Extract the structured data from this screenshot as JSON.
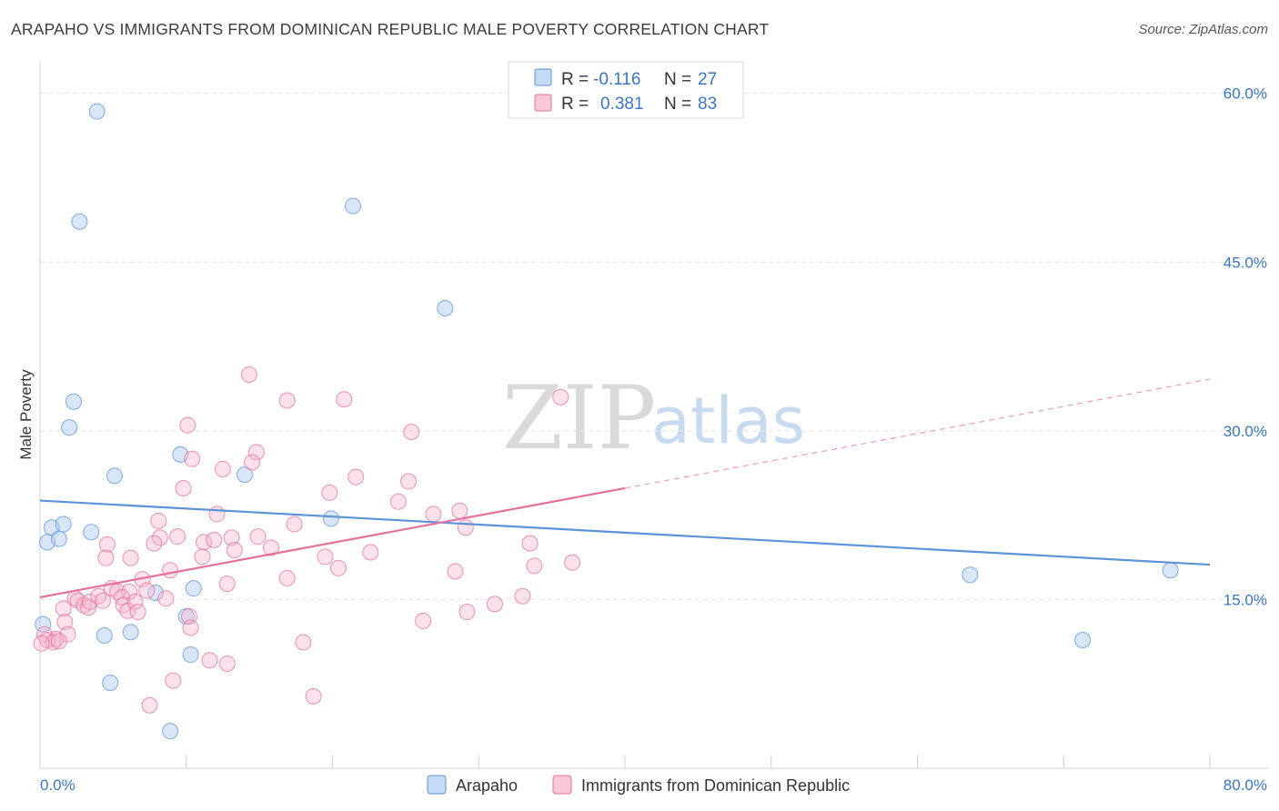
{
  "title": "ARAPAHO VS IMMIGRANTS FROM DOMINICAN REPUBLIC MALE POVERTY CORRELATION CHART",
  "source": "Source: ZipAtlas.com",
  "watermark": {
    "zip": "ZIP",
    "atlas": "atlas"
  },
  "legend": {
    "r_label": "R =",
    "n_label": "N =",
    "series": [
      {
        "name": "Arapaho",
        "r": "-0.116",
        "n": "27",
        "color": "#5b93d6",
        "fill": "#c5daf5"
      },
      {
        "name": "Immigrants from Dominican Republic",
        "r": "0.381",
        "n": "83",
        "color": "#e6709a",
        "fill": "#f8c8d8"
      }
    ]
  },
  "chart_data": {
    "type": "scatter",
    "title": "ARAPAHO VS IMMIGRANTS FROM DOMINICAN REPUBLIC MALE POVERTY CORRELATION CHART",
    "xlabel": "",
    "ylabel": "Male Poverty",
    "xlim": [
      0,
      80
    ],
    "ylim": [
      0,
      62
    ],
    "x_tick_labels": [
      "0.0%",
      "80.0%"
    ],
    "y_ticks": [
      15,
      30,
      45,
      60
    ],
    "y_tick_labels": [
      "15.0%",
      "30.0%",
      "45.0%",
      "60.0%"
    ],
    "grid": true,
    "legend_position": "top-center",
    "series": [
      {
        "name": "Arapaho",
        "color": "#5b93d6",
        "points": [
          [
            3.9,
            58.4
          ],
          [
            2.7,
            48.6
          ],
          [
            21.4,
            50.0
          ],
          [
            27.7,
            40.9
          ],
          [
            2.3,
            32.6
          ],
          [
            2.0,
            30.3
          ],
          [
            9.6,
            27.9
          ],
          [
            5.1,
            26.0
          ],
          [
            14.0,
            26.1
          ],
          [
            0.8,
            21.4
          ],
          [
            1.6,
            21.7
          ],
          [
            3.5,
            21.0
          ],
          [
            0.5,
            20.1
          ],
          [
            1.3,
            20.4
          ],
          [
            19.9,
            22.2
          ],
          [
            7.9,
            15.6
          ],
          [
            10.5,
            16.0
          ],
          [
            10.0,
            13.5
          ],
          [
            4.4,
            11.8
          ],
          [
            6.2,
            12.1
          ],
          [
            10.3,
            10.1
          ],
          [
            4.8,
            7.6
          ],
          [
            8.9,
            3.3
          ],
          [
            0.2,
            12.8
          ],
          [
            63.6,
            17.2
          ],
          [
            71.3,
            11.4
          ],
          [
            77.3,
            17.6
          ]
        ],
        "trend": {
          "x": [
            0,
            80
          ],
          "y": [
            23.8,
            18.1
          ]
        }
      },
      {
        "name": "Immigrants from Dominican Republic",
        "color": "#e6709a",
        "points": [
          [
            14.3,
            35.0
          ],
          [
            35.6,
            33.0
          ],
          [
            16.9,
            32.7
          ],
          [
            20.8,
            32.8
          ],
          [
            10.1,
            30.5
          ],
          [
            25.4,
            29.9
          ],
          [
            14.8,
            28.1
          ],
          [
            10.4,
            27.5
          ],
          [
            14.5,
            27.2
          ],
          [
            12.5,
            26.6
          ],
          [
            21.6,
            25.9
          ],
          [
            25.2,
            25.5
          ],
          [
            9.8,
            24.9
          ],
          [
            19.8,
            24.5
          ],
          [
            24.5,
            23.7
          ],
          [
            12.1,
            22.6
          ],
          [
            26.9,
            22.6
          ],
          [
            28.7,
            22.9
          ],
          [
            8.1,
            22.0
          ],
          [
            17.4,
            21.7
          ],
          [
            29.1,
            21.4
          ],
          [
            8.2,
            20.5
          ],
          [
            9.4,
            20.6
          ],
          [
            11.2,
            20.1
          ],
          [
            11.9,
            20.3
          ],
          [
            13.1,
            20.5
          ],
          [
            14.9,
            20.6
          ],
          [
            15.8,
            19.6
          ],
          [
            13.3,
            19.4
          ],
          [
            22.6,
            19.2
          ],
          [
            4.6,
            19.9
          ],
          [
            7.8,
            20.0
          ],
          [
            4.5,
            18.7
          ],
          [
            6.2,
            18.7
          ],
          [
            11.1,
            18.8
          ],
          [
            19.5,
            18.8
          ],
          [
            33.5,
            20.0
          ],
          [
            33.8,
            18.0
          ],
          [
            36.4,
            18.3
          ],
          [
            8.9,
            17.6
          ],
          [
            20.4,
            17.8
          ],
          [
            28.4,
            17.5
          ],
          [
            7.0,
            16.8
          ],
          [
            16.9,
            16.9
          ],
          [
            12.8,
            16.4
          ],
          [
            4.9,
            16.0
          ],
          [
            5.3,
            15.7
          ],
          [
            6.1,
            15.7
          ],
          [
            7.3,
            15.8
          ],
          [
            2.4,
            15.1
          ],
          [
            2.6,
            14.9
          ],
          [
            3.0,
            14.5
          ],
          [
            3.3,
            14.3
          ],
          [
            3.4,
            14.8
          ],
          [
            4.0,
            15.3
          ],
          [
            4.3,
            14.9
          ],
          [
            5.6,
            15.2
          ],
          [
            5.7,
            14.5
          ],
          [
            6.0,
            14.0
          ],
          [
            6.5,
            14.8
          ],
          [
            6.7,
            13.9
          ],
          [
            8.6,
            15.1
          ],
          [
            1.6,
            14.2
          ],
          [
            1.7,
            13.0
          ],
          [
            10.2,
            13.5
          ],
          [
            10.3,
            12.5
          ],
          [
            29.2,
            13.9
          ],
          [
            31.1,
            14.6
          ],
          [
            33.0,
            15.3
          ],
          [
            26.2,
            13.1
          ],
          [
            18.0,
            11.2
          ],
          [
            1.1,
            11.5
          ],
          [
            1.9,
            11.9
          ],
          [
            0.3,
            11.9
          ],
          [
            0.5,
            11.4
          ],
          [
            0.9,
            11.2
          ],
          [
            1.3,
            11.3
          ],
          [
            11.6,
            9.6
          ],
          [
            12.8,
            9.3
          ],
          [
            9.1,
            7.8
          ],
          [
            18.7,
            6.4
          ],
          [
            7.5,
            5.6
          ],
          [
            0.1,
            11.1
          ]
        ],
        "trend": {
          "x": [
            0,
            40
          ],
          "y": [
            15.2,
            24.9
          ]
        },
        "trend_dashed": {
          "x": [
            40,
            80
          ],
          "y": [
            24.9,
            34.6
          ]
        }
      }
    ]
  }
}
